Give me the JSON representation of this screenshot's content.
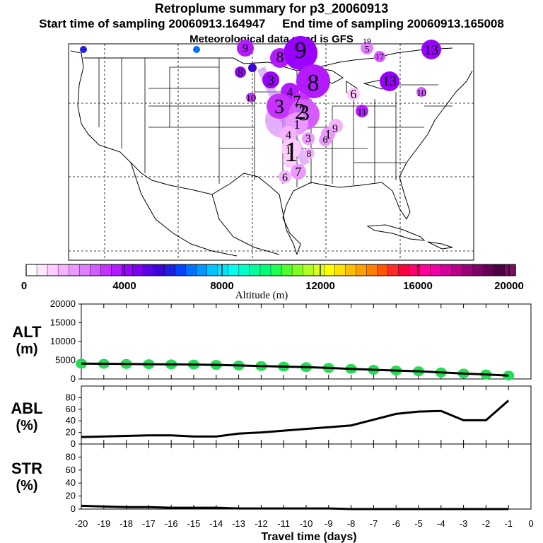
{
  "header": {
    "title": "Retroplume summary for p3_20060913",
    "start_label": "Start time of sampling 20060913.164947",
    "end_label": "End time of sampling 20060913.165008",
    "met_label": "Meteorological data used is GFS"
  },
  "map": {
    "region": "United States",
    "plume_labels": [
      "9",
      "13",
      "8",
      "9",
      "5",
      "19",
      "17",
      "13",
      "8",
      "3",
      "8",
      "10",
      "11",
      "10",
      "6",
      "4",
      "3",
      "7",
      "2",
      "3",
      "4",
      "1",
      "3",
      "1",
      "9",
      "6",
      "1",
      "1",
      "8",
      "7",
      "6"
    ]
  },
  "colorbar": {
    "ticks": [
      "0",
      "4000",
      "8000",
      "12000",
      "16000",
      "20000"
    ],
    "label": "Altitude (m)",
    "colors": [
      "#ffffff",
      "#ffe6ff",
      "#ffccff",
      "#f5b3ff",
      "#eb99ff",
      "#e080ff",
      "#d45cff",
      "#c633ff",
      "#b31aff",
      "#9900ff",
      "#7a00f0",
      "#5c00e6",
      "#3d00d9",
      "#1f1fe0",
      "#0044ff",
      "#0070ff",
      "#0099ff",
      "#00c2ff",
      "#00e0ff",
      "#00ffee",
      "#00ffc8",
      "#00ffa0",
      "#00ff78",
      "#20ff50",
      "#50ff30",
      "#80ff20",
      "#b0ff20",
      "#d8ff20",
      "#ffff00",
      "#ffe000",
      "#ffc000",
      "#ffa000",
      "#ff8000",
      "#ff5500",
      "#ff2a2a",
      "#ff0040",
      "#ff0070",
      "#ff0099",
      "#f000aa",
      "#d40099",
      "#b80088",
      "#9c0077",
      "#800066",
      "#660055",
      "#4d0044",
      "#7a1060"
    ]
  },
  "chart_data": [
    {
      "type": "scatter",
      "panel": "ALT",
      "ylabel": "ALT (m)",
      "ylim": [
        0,
        20000
      ],
      "yticks": [
        "0",
        "5000",
        "10000",
        "15000",
        "20000"
      ],
      "x": [
        -20,
        -19,
        -18,
        -17,
        -16,
        -15,
        -14,
        -13,
        -12,
        -11,
        -10,
        -9,
        -8,
        -7,
        -6,
        -5,
        -4,
        -3,
        -2,
        -1
      ],
      "mean_line": [
        4100,
        4050,
        4000,
        3950,
        3900,
        3850,
        3750,
        3600,
        3450,
        3300,
        3150,
        2950,
        2700,
        2450,
        2250,
        2050,
        1750,
        1450,
        1200,
        900
      ],
      "spread": [
        1200,
        1000,
        1100,
        900,
        800,
        700,
        700,
        900,
        800,
        700,
        800,
        1000,
        700,
        600,
        500,
        600,
        400,
        600,
        300,
        200
      ],
      "color": "#22dd55"
    },
    {
      "type": "line",
      "panel": "ABL",
      "ylabel": "ABL (%)",
      "ylim": [
        0,
        100
      ],
      "yticks": [
        "0",
        "20",
        "40",
        "60",
        "80"
      ],
      "x": [
        -20,
        -19,
        -18,
        -17,
        -16,
        -15,
        -14,
        -13,
        -12,
        -11,
        -10,
        -9,
        -8,
        -7,
        -6,
        -5,
        -4,
        -3,
        -2,
        -1
      ],
      "values": [
        12,
        13,
        14,
        15,
        15,
        13,
        13,
        18,
        20,
        23,
        26,
        29,
        32,
        42,
        52,
        56,
        57,
        41,
        41,
        75
      ]
    },
    {
      "type": "line",
      "panel": "STR",
      "ylabel": "STR (%)",
      "ylim": [
        0,
        100
      ],
      "yticks": [
        "0",
        "20",
        "40",
        "60",
        "80"
      ],
      "x": [
        -20,
        -19,
        -18,
        -17,
        -16,
        -15,
        -14,
        -13,
        -12,
        -11,
        -10,
        -9,
        -8,
        -7,
        -6,
        -5,
        -4,
        -3,
        -2,
        -1
      ],
      "values": [
        5,
        4,
        3,
        3,
        2,
        2,
        2,
        1,
        1,
        1,
        1,
        1,
        0,
        0,
        0,
        0,
        0,
        0,
        0,
        0
      ]
    }
  ],
  "xaxis": {
    "label": "Travel time (days)",
    "ticks": [
      "-20",
      "-19",
      "-18",
      "-17",
      "-16",
      "-15",
      "-14",
      "-13",
      "-12",
      "-11",
      "-10",
      "-9",
      "-8",
      "-7",
      "-6",
      "-5",
      "-4",
      "-3",
      "-2",
      "-1",
      "0"
    ]
  },
  "panel_labels": {
    "alt": [
      "ALT",
      "(m)"
    ],
    "abl": [
      "ABL",
      "(%)"
    ],
    "str": [
      "STR",
      "(%)"
    ]
  }
}
